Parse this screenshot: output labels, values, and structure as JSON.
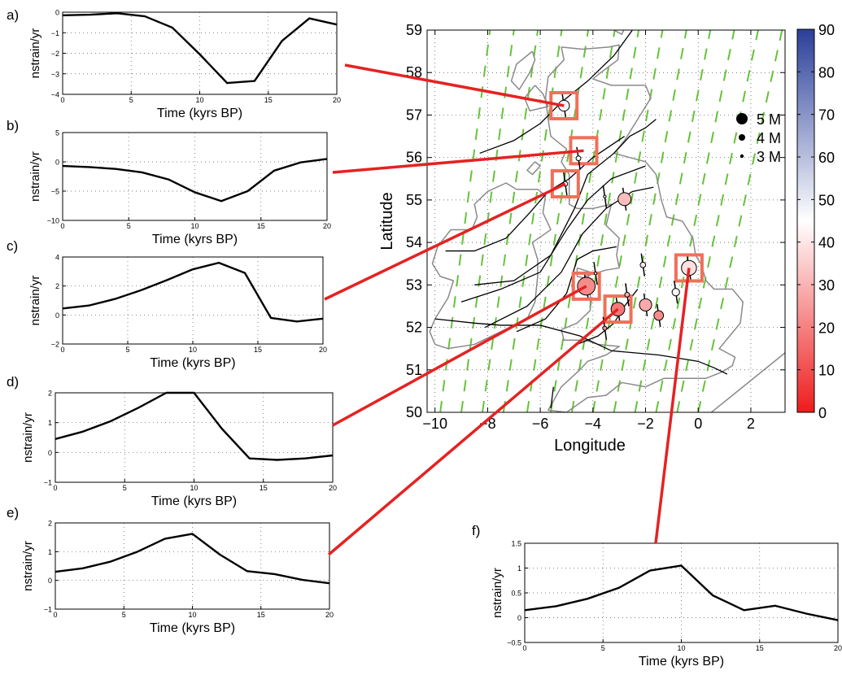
{
  "figure": {
    "panels": [
      {
        "id": "a",
        "label": "a)"
      },
      {
        "id": "b",
        "label": "b)"
      },
      {
        "id": "c",
        "label": "c)"
      },
      {
        "id": "d",
        "label": "d)"
      },
      {
        "id": "e",
        "label": "e)"
      },
      {
        "id": "f",
        "label": "f)"
      }
    ]
  },
  "colorbar": {
    "ticks": [
      0,
      10,
      20,
      30,
      40,
      50,
      60,
      70,
      80,
      90
    ],
    "colors": {
      "low": "#ee1c1c",
      "mid": "#ffffff",
      "high": "#2a3f9a"
    }
  },
  "legend": {
    "entries": [
      {
        "label": "5 M",
        "magnitude": 5
      },
      {
        "label": "4 M",
        "magnitude": 4
      },
      {
        "label": "3 M",
        "magnitude": 3
      }
    ]
  },
  "colors": {
    "line": "#000000",
    "connector": "#e52222",
    "highlight": "#f0705a",
    "coast": "#8a8a8a",
    "strain": "#66c23a",
    "grid": "#b0b0b0"
  },
  "chart_data": [
    {
      "id": "a",
      "type": "line",
      "ylabel": "nstrain/yr",
      "xlabel": "Time (kyrs BP)",
      "xlim": [
        0,
        20
      ],
      "ylim": [
        -4,
        0
      ],
      "xticks": [
        0,
        5,
        10,
        15,
        20
      ],
      "yticks": [
        -4,
        -3,
        -2,
        -1,
        0
      ],
      "x": [
        0,
        2,
        4,
        6,
        8,
        10,
        12,
        14,
        16,
        18,
        20
      ],
      "y": [
        -0.15,
        -0.12,
        -0.05,
        -0.2,
        -0.75,
        -2.05,
        -3.45,
        -3.35,
        -1.4,
        -0.3,
        -0.6
      ]
    },
    {
      "id": "b",
      "type": "line",
      "ylabel": "nstrain/yr",
      "xlabel": "Time (kyrs BP)",
      "xlim": [
        0,
        20
      ],
      "ylim": [
        -10,
        5
      ],
      "xticks": [
        0,
        5,
        10,
        15,
        20
      ],
      "yticks": [
        -10,
        -5,
        0,
        5
      ],
      "x": [
        0,
        2,
        4,
        6,
        8,
        10,
        12,
        14,
        16,
        18,
        20
      ],
      "y": [
        -0.7,
        -0.9,
        -1.2,
        -1.8,
        -3,
        -5.2,
        -6.7,
        -5,
        -1.5,
        -0.1,
        0.5
      ]
    },
    {
      "id": "c",
      "type": "line",
      "ylabel": "nstrain/yr",
      "xlabel": "Time (kyrs BP)",
      "xlim": [
        0,
        20
      ],
      "ylim": [
        -2,
        4
      ],
      "xticks": [
        0,
        5,
        10,
        15,
        20
      ],
      "yticks": [
        -2,
        0,
        2,
        4
      ],
      "x": [
        0,
        2,
        4,
        6,
        8,
        10,
        12,
        14,
        16,
        18,
        20
      ],
      "y": [
        0.45,
        0.65,
        1.1,
        1.7,
        2.4,
        3.15,
        3.6,
        2.9,
        -0.2,
        -0.45,
        -0.25
      ]
    },
    {
      "id": "d",
      "type": "line",
      "ylabel": "nstrain/yr",
      "xlabel": "Time (kyrs BP)",
      "xlim": [
        0,
        20
      ],
      "ylim": [
        -1,
        2
      ],
      "xticks": [
        0,
        5,
        10,
        15,
        20
      ],
      "yticks": [
        -1,
        0,
        1,
        2
      ],
      "x": [
        0,
        2,
        4,
        6,
        8,
        10,
        12,
        14,
        16,
        18,
        20
      ],
      "y": [
        0.45,
        0.7,
        1.05,
        1.5,
        2.0,
        2.0,
        0.8,
        -0.2,
        -0.25,
        -0.2,
        -0.1
      ]
    },
    {
      "id": "e",
      "type": "line",
      "ylabel": "nstrain/yr",
      "xlabel": "Time (kyrs BP)",
      "xlim": [
        0,
        20
      ],
      "ylim": [
        -1,
        2
      ],
      "xticks": [
        0,
        5,
        10,
        15,
        20
      ],
      "yticks": [
        -1,
        0,
        1,
        2
      ],
      "x": [
        0,
        2,
        4,
        6,
        8,
        10,
        12,
        14,
        16,
        18,
        20
      ],
      "y": [
        0.3,
        0.42,
        0.65,
        1.0,
        1.45,
        1.62,
        0.9,
        0.32,
        0.22,
        0.02,
        -0.1
      ]
    },
    {
      "id": "f",
      "type": "line",
      "ylabel": "nstrain/yr",
      "xlabel": "Time (kyrs BP)",
      "xlim": [
        0,
        20
      ],
      "ylim": [
        -0.5,
        1.5
      ],
      "xticks": [
        0,
        5,
        10,
        15,
        20
      ],
      "yticks": [
        -0.5,
        0,
        0.5,
        1,
        1.5
      ],
      "x": [
        0,
        2,
        4,
        6,
        8,
        10,
        12,
        14,
        16,
        18,
        20
      ],
      "y": [
        0.15,
        0.23,
        0.38,
        0.6,
        0.95,
        1.05,
        0.45,
        0.15,
        0.24,
        0.08,
        -0.05
      ]
    },
    {
      "id": "map",
      "type": "scatter",
      "xlabel": "Longitude",
      "ylabel": "Latitude",
      "xlim": [
        -10.3,
        3.3
      ],
      "ylim": [
        50,
        59
      ],
      "xticks": [
        -10,
        -8,
        -6,
        -4,
        -2,
        0,
        2
      ],
      "yticks": [
        50,
        51,
        52,
        53,
        54,
        55,
        56,
        57,
        58,
        59
      ],
      "points": [
        {
          "lon": -5.1,
          "lat": 57.22,
          "mag": 4.2,
          "value": 48
        },
        {
          "lon": -4.55,
          "lat": 55.98,
          "mag": 3.3,
          "value": 46
        },
        {
          "lon": -5.05,
          "lat": 55.38,
          "mag": 3.3,
          "value": 47
        },
        {
          "lon": -3.55,
          "lat": 55.08,
          "mag": 3.0,
          "value": 48
        },
        {
          "lon": -2.8,
          "lat": 55.02,
          "mag": 4.5,
          "value": 32
        },
        {
          "lon": -2.1,
          "lat": 53.47,
          "mag": 3.4,
          "value": 40
        },
        {
          "lon": -4.25,
          "lat": 52.97,
          "mag": 5.2,
          "value": 22
        },
        {
          "lon": -3.9,
          "lat": 53.27,
          "mag": 3.0,
          "value": 46
        },
        {
          "lon": -2.7,
          "lat": 52.77,
          "mag": 3.3,
          "value": 30
        },
        {
          "lon": -3.05,
          "lat": 52.43,
          "mag": 4.6,
          "value": 18
        },
        {
          "lon": -2.0,
          "lat": 52.53,
          "mag": 4.4,
          "value": 28
        },
        {
          "lon": -1.5,
          "lat": 52.28,
          "mag": 4.0,
          "value": 22
        },
        {
          "lon": -3.55,
          "lat": 51.98,
          "mag": 3.2,
          "value": 22
        },
        {
          "lon": -0.85,
          "lat": 52.83,
          "mag": 3.7,
          "value": 43
        },
        {
          "lon": -0.35,
          "lat": 53.4,
          "mag": 4.8,
          "value": 39
        }
      ],
      "highlight_boxes": [
        {
          "panel": "a",
          "lon": -5.1,
          "lat": 57.22
        },
        {
          "panel": "b",
          "lon": -4.35,
          "lat": 56.16
        },
        {
          "panel": "c",
          "lon": -5.05,
          "lat": 55.38
        },
        {
          "panel": "d",
          "lon": -4.25,
          "lat": 52.97
        },
        {
          "panel": "e",
          "lon": -3.05,
          "lat": 52.43
        },
        {
          "panel": "f",
          "lon": -0.35,
          "lat": 53.4
        }
      ],
      "contours": [
        [
          [
            -8.5,
            53
          ],
          [
            -7,
            53.1
          ],
          [
            -5.6,
            53.7
          ],
          [
            -4.7,
            54.8
          ],
          [
            -4.2,
            55.6
          ],
          [
            -3.2,
            56.1
          ],
          [
            -2.6,
            56.5
          ],
          [
            -2,
            56.7
          ],
          [
            -1.6,
            56.9
          ]
        ],
        [
          [
            -9.6,
            53.8
          ],
          [
            -8.5,
            53.8
          ],
          [
            -7.3,
            54.1
          ],
          [
            -6.4,
            54.7
          ],
          [
            -5.7,
            55.2
          ],
          [
            -4.9,
            55.5
          ],
          [
            -4.0,
            56.0
          ],
          [
            -2.8,
            56.5
          ]
        ],
        [
          [
            -9.0,
            52.6
          ],
          [
            -7.5,
            52.9
          ],
          [
            -6.0,
            53.3
          ],
          [
            -5.0,
            54.3
          ],
          [
            -4.2,
            55.0
          ],
          [
            -3.3,
            55.5
          ],
          [
            -2.0,
            55.8
          ]
        ],
        [
          [
            -8.1,
            52.0
          ],
          [
            -6.5,
            52.5
          ],
          [
            -5.2,
            53.3
          ],
          [
            -4.4,
            54.2
          ],
          [
            -3.5,
            54.8
          ],
          [
            -2.5,
            55.2
          ],
          [
            -1.7,
            55.3
          ]
        ],
        [
          [
            -6.9,
            51.9
          ],
          [
            -5.8,
            52.2
          ],
          [
            -5.0,
            52.8
          ],
          [
            -4.6,
            53.6
          ],
          [
            -4.0,
            53.8
          ],
          [
            -3.1,
            53.9
          ]
        ],
        [
          [
            -8.3,
            56.1
          ],
          [
            -7,
            56.4
          ],
          [
            -6,
            56.8
          ],
          [
            -5.2,
            57.3
          ],
          [
            -4.2,
            57.8
          ],
          [
            -3.2,
            58.4
          ],
          [
            -2.5,
            59
          ]
        ],
        [
          [
            -10,
            52.2
          ],
          [
            -8.5,
            52.1
          ],
          [
            -7.5,
            52.05
          ],
          [
            -6.0,
            52.05
          ],
          [
            -4.5,
            51.8
          ],
          [
            -3.3,
            51.45
          ],
          [
            -1.5,
            51.35
          ],
          [
            0.0,
            51.2
          ],
          [
            0.6,
            51.05
          ],
          [
            1.1,
            50.9
          ]
        ],
        [
          [
            -4.6,
            51.6
          ],
          [
            -3.8,
            51.8
          ],
          [
            -3.2,
            52.1
          ],
          [
            -2.8,
            52.5
          ],
          [
            -2.3,
            52.9
          ]
        ],
        [
          [
            -5.6,
            50.1
          ],
          [
            -5.5,
            50.6
          ]
        ]
      ],
      "coastlines": [
        [
          [
            -5.2,
            58.6
          ],
          [
            -4.4,
            58.55
          ],
          [
            -3.4,
            58.6
          ],
          [
            -3.0,
            58.65
          ],
          [
            -3.05,
            58.3
          ],
          [
            -3.7,
            58.0
          ],
          [
            -4.0,
            57.85
          ],
          [
            -3.3,
            57.7
          ],
          [
            -2.0,
            57.7
          ],
          [
            -1.8,
            57.4
          ],
          [
            -2.1,
            57.1
          ],
          [
            -2.4,
            56.8
          ],
          [
            -2.8,
            56.4
          ],
          [
            -3.2,
            56.1
          ],
          [
            -2.6,
            56.0
          ],
          [
            -2.0,
            55.9
          ],
          [
            -1.6,
            55.6
          ],
          [
            -1.4,
            55.0
          ],
          [
            -1.2,
            54.6
          ],
          [
            -0.6,
            54.5
          ],
          [
            -0.2,
            54.1
          ],
          [
            -0.1,
            53.7
          ],
          [
            0.1,
            53.5
          ],
          [
            0.3,
            53.1
          ],
          [
            0.6,
            52.9
          ],
          [
            1.3,
            52.9
          ],
          [
            1.7,
            52.6
          ],
          [
            1.6,
            52.1
          ],
          [
            1.2,
            51.8
          ],
          [
            0.8,
            51.5
          ],
          [
            1.4,
            51.3
          ],
          [
            1.3,
            51.1
          ],
          [
            0.9,
            50.95
          ],
          [
            0.3,
            50.8
          ],
          [
            -0.5,
            50.8
          ],
          [
            -1.3,
            50.8
          ],
          [
            -2.0,
            50.6
          ],
          [
            -2.9,
            50.7
          ],
          [
            -3.5,
            50.4
          ],
          [
            -4.2,
            50.35
          ],
          [
            -5.0,
            50.0
          ],
          [
            -5.7,
            50.05
          ],
          [
            -5.2,
            50.6
          ],
          [
            -4.5,
            51.0
          ],
          [
            -4.2,
            51.2
          ],
          [
            -3.5,
            51.35
          ],
          [
            -3.0,
            51.55
          ],
          [
            -3.8,
            51.6
          ],
          [
            -4.3,
            51.7
          ],
          [
            -5.1,
            51.7
          ],
          [
            -5.2,
            51.95
          ],
          [
            -4.6,
            52.1
          ],
          [
            -4.1,
            52.4
          ],
          [
            -4.1,
            52.8
          ],
          [
            -4.6,
            52.85
          ],
          [
            -4.3,
            53.2
          ],
          [
            -3.5,
            53.35
          ],
          [
            -3.0,
            53.4
          ],
          [
            -3.1,
            53.7
          ],
          [
            -3.0,
            54.1
          ],
          [
            -3.5,
            54.4
          ],
          [
            -3.3,
            54.9
          ],
          [
            -4.0,
            54.8
          ],
          [
            -4.6,
            54.8
          ],
          [
            -4.9,
            54.9
          ],
          [
            -4.9,
            55.6
          ],
          [
            -5.2,
            55.9
          ],
          [
            -5.0,
            56.2
          ],
          [
            -5.6,
            56.5
          ],
          [
            -5.7,
            56.9
          ],
          [
            -5.8,
            57.4
          ],
          [
            -5.7,
            57.9
          ],
          [
            -5.1,
            58.3
          ],
          [
            -5.2,
            58.6
          ]
        ],
        [
          [
            -10.0,
            51.6
          ],
          [
            -9.5,
            51.5
          ],
          [
            -8.5,
            51.6
          ],
          [
            -7.5,
            51.9
          ],
          [
            -6.5,
            52.2
          ],
          [
            -6.2,
            52.6
          ],
          [
            -6.1,
            53.2
          ],
          [
            -6.1,
            53.6
          ],
          [
            -6.3,
            54.0
          ],
          [
            -5.6,
            54.3
          ],
          [
            -5.9,
            54.7
          ],
          [
            -5.8,
            55.1
          ],
          [
            -6.1,
            55.25
          ],
          [
            -6.9,
            55.25
          ],
          [
            -7.3,
            55.4
          ],
          [
            -8.0,
            55.2
          ],
          [
            -8.5,
            54.9
          ],
          [
            -8.4,
            54.6
          ],
          [
            -8.6,
            54.3
          ],
          [
            -9.4,
            54.3
          ],
          [
            -9.9,
            53.9
          ],
          [
            -10.1,
            53.5
          ],
          [
            -9.8,
            53.2
          ],
          [
            -9.3,
            53.1
          ],
          [
            -9.5,
            52.7
          ],
          [
            -10.0,
            52.2
          ],
          [
            -10.2,
            51.9
          ],
          [
            -10.0,
            51.6
          ]
        ],
        [
          [
            -6.2,
            57.7
          ],
          [
            -6.6,
            57.4
          ],
          [
            -6.4,
            57.1
          ],
          [
            -5.7,
            57.2
          ],
          [
            -5.9,
            57.5
          ],
          [
            -6.2,
            57.7
          ]
        ],
        [
          [
            -6.3,
            58.5
          ],
          [
            -6.9,
            58.2
          ],
          [
            -7.1,
            57.8
          ],
          [
            -6.8,
            57.6
          ],
          [
            -6.4,
            58.0
          ],
          [
            -6.2,
            58.3
          ],
          [
            -6.3,
            58.5
          ]
        ],
        [
          [
            -6.2,
            55.9
          ],
          [
            -6.5,
            55.7
          ],
          [
            -6.3,
            55.6
          ],
          [
            -6.0,
            55.8
          ],
          [
            -6.2,
            55.9
          ]
        ],
        [
          [
            -4.6,
            53.4
          ],
          [
            -4.1,
            53.3
          ],
          [
            -4.2,
            53.15
          ],
          [
            -4.6,
            53.2
          ],
          [
            -4.6,
            53.4
          ]
        ],
        [
          [
            -3.2,
            59.0
          ],
          [
            -2.7,
            59.2
          ],
          [
            -2.9,
            58.9
          ],
          [
            -3.2,
            59.0
          ]
        ],
        [
          [
            0.5,
            50.0
          ],
          [
            3.3,
            51.4
          ]
        ]
      ]
    }
  ]
}
